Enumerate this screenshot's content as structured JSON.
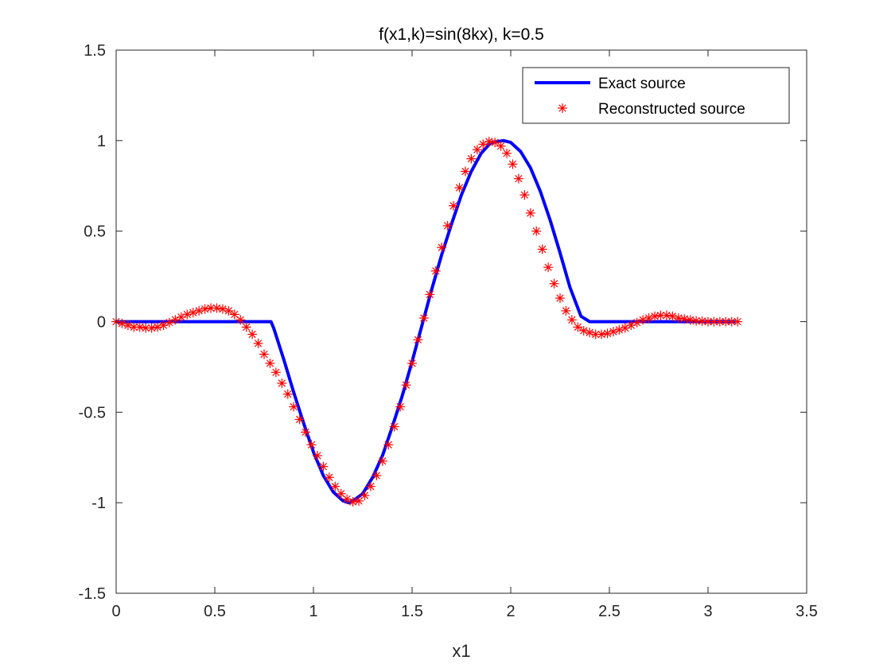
{
  "chart_data": {
    "type": "line",
    "title": "f(x1,k)=sin(8kx),   k=0.5",
    "xlabel": "x1",
    "ylabel": "",
    "xlim": [
      0,
      3.5
    ],
    "ylim": [
      -1.5,
      1.5
    ],
    "xticks": [
      "0",
      "0.5",
      "1",
      "1.5",
      "2",
      "2.5",
      "3",
      "3.5"
    ],
    "yticks": [
      "-1.5",
      "-1",
      "-0.5",
      "0",
      "0.5",
      "1",
      "1.5"
    ],
    "grid": false,
    "legend_position": "top-right",
    "series": [
      {
        "name": "Exact source",
        "style": "line",
        "color": "#0000ff",
        "x": [
          0,
          0.2,
          0.4,
          0.6,
          0.75,
          0.785,
          0.8,
          0.85,
          0.9,
          0.95,
          1.0,
          1.05,
          1.1,
          1.15,
          1.178,
          1.2,
          1.25,
          1.3,
          1.35,
          1.4,
          1.45,
          1.5,
          1.55,
          1.6,
          1.65,
          1.7,
          1.75,
          1.8,
          1.85,
          1.9,
          1.963,
          2.0,
          2.05,
          2.1,
          2.15,
          2.2,
          2.25,
          2.3,
          2.356,
          2.4,
          2.6,
          2.8,
          3.0,
          3.14
        ],
        "y": [
          0,
          0,
          0,
          0,
          0,
          0,
          -0.04,
          -0.21,
          -0.39,
          -0.56,
          -0.72,
          -0.85,
          -0.94,
          -0.99,
          -1.0,
          -0.99,
          -0.95,
          -0.86,
          -0.74,
          -0.58,
          -0.41,
          -0.22,
          -0.02,
          0.18,
          0.37,
          0.54,
          0.7,
          0.83,
          0.93,
          0.99,
          1.0,
          0.99,
          0.94,
          0.85,
          0.72,
          0.56,
          0.38,
          0.19,
          0.03,
          0,
          0,
          0,
          0,
          0
        ]
      },
      {
        "name": "Reconstructed source",
        "style": "markers",
        "marker": "asterisk",
        "color": "#ff0000",
        "x": [
          0,
          0.03,
          0.06,
          0.09,
          0.12,
          0.15,
          0.18,
          0.21,
          0.24,
          0.27,
          0.3,
          0.33,
          0.36,
          0.39,
          0.42,
          0.45,
          0.48,
          0.51,
          0.54,
          0.57,
          0.6,
          0.63,
          0.66,
          0.69,
          0.72,
          0.75,
          0.78,
          0.81,
          0.84,
          0.87,
          0.9,
          0.93,
          0.96,
          0.99,
          1.02,
          1.05,
          1.08,
          1.11,
          1.14,
          1.17,
          1.2,
          1.23,
          1.26,
          1.29,
          1.32,
          1.35,
          1.38,
          1.41,
          1.44,
          1.47,
          1.5,
          1.53,
          1.56,
          1.59,
          1.62,
          1.65,
          1.68,
          1.71,
          1.74,
          1.77,
          1.8,
          1.83,
          1.86,
          1.89,
          1.92,
          1.95,
          1.98,
          2.01,
          2.04,
          2.07,
          2.1,
          2.13,
          2.16,
          2.19,
          2.22,
          2.25,
          2.28,
          2.31,
          2.34,
          2.37,
          2.4,
          2.43,
          2.46,
          2.49,
          2.52,
          2.55,
          2.58,
          2.61,
          2.64,
          2.67,
          2.7,
          2.73,
          2.76,
          2.79,
          2.82,
          2.85,
          2.88,
          2.91,
          2.94,
          2.97,
          3.0,
          3.03,
          3.06,
          3.09,
          3.12,
          3.15
        ],
        "y": [
          0,
          -0.01,
          -0.02,
          -0.03,
          -0.03,
          -0.035,
          -0.035,
          -0.03,
          -0.02,
          -0.005,
          0.01,
          0.025,
          0.04,
          0.05,
          0.06,
          0.07,
          0.075,
          0.075,
          0.07,
          0.06,
          0.04,
          0.01,
          -0.03,
          -0.07,
          -0.12,
          -0.18,
          -0.23,
          -0.28,
          -0.34,
          -0.4,
          -0.47,
          -0.54,
          -0.61,
          -0.68,
          -0.74,
          -0.8,
          -0.86,
          -0.91,
          -0.95,
          -0.98,
          -0.995,
          -0.99,
          -0.96,
          -0.91,
          -0.85,
          -0.77,
          -0.68,
          -0.58,
          -0.47,
          -0.35,
          -0.23,
          -0.1,
          0.02,
          0.15,
          0.28,
          0.41,
          0.53,
          0.64,
          0.74,
          0.83,
          0.9,
          0.95,
          0.98,
          0.995,
          0.99,
          0.97,
          0.93,
          0.87,
          0.79,
          0.7,
          0.6,
          0.5,
          0.4,
          0.3,
          0.21,
          0.13,
          0.06,
          0.01,
          -0.03,
          -0.05,
          -0.06,
          -0.07,
          -0.07,
          -0.065,
          -0.055,
          -0.045,
          -0.035,
          -0.02,
          -0.005,
          0.01,
          0.02,
          0.03,
          0.035,
          0.035,
          0.03,
          0.02,
          0.015,
          0.01,
          0.005,
          0.003,
          0,
          0,
          0,
          0,
          0,
          0
        ]
      }
    ]
  }
}
